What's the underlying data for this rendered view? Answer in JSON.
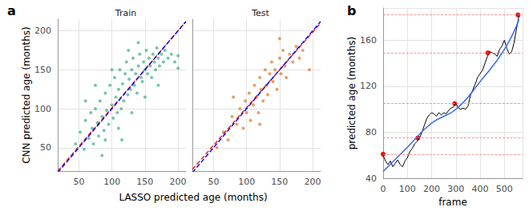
{
  "chart_data": [
    {
      "type": "scatter",
      "panel_label": "a",
      "x_label": "LASSO predicted age (months)",
      "y_label": "CNN predicted age (months)",
      "xlim": [
        18,
        212
      ],
      "xticks": [
        50,
        100,
        150,
        200
      ],
      "ylim": [
        20,
        215
      ],
      "yticks": [
        50,
        100,
        150,
        200
      ],
      "grid": true,
      "facets": [
        {
          "title": "Train",
          "series": [
            {
              "type": "scatter",
              "color": "#1b9e77",
              "marker": "circle",
              "x": [
                45,
                52,
                58,
                60,
                65,
                68,
                70,
                72,
                75,
                78,
                80,
                82,
                85,
                88,
                90,
                92,
                95,
                97,
                100,
                102,
                104,
                106,
                108,
                110,
                112,
                114,
                116,
                118,
                120,
                122,
                124,
                126,
                128,
                130,
                132,
                134,
                136,
                138,
                140,
                142,
                144,
                146,
                148,
                150,
                152,
                154,
                156,
                158,
                160,
                162,
                164,
                166,
                168,
                170,
                172,
                175,
                178,
                180,
                185,
                190,
                195,
                200,
                60,
                75,
                90,
                110,
                130,
                150,
                170,
                140,
                125,
                100,
                85,
                115,
                200
              ],
              "values": [
                55,
                70,
                48,
                85,
                62,
                95,
                75,
                55,
                100,
                82,
                65,
                110,
                90,
                72,
                120,
                98,
                80,
                130,
                105,
                88,
                140,
                115,
                95,
                125,
                150,
                100,
                132,
                110,
                145,
                160,
                118,
                138,
                125,
                150,
                165,
                130,
                145,
                120,
                155,
                170,
                140,
                135,
                160,
                150,
                175,
                145,
                165,
                155,
                140,
                170,
                160,
                150,
                178,
                165,
                155,
                170,
                160,
                175,
                165,
                170,
                160,
                168,
                110,
                130,
                60,
                75,
                95,
                115,
                130,
                185,
                175,
                150,
                40,
                60,
                152
              ]
            },
            {
              "type": "line",
              "color": "#e41a1c",
              "line_style": "dashed",
              "x": [
                18,
                212
              ],
              "values": [
                20,
                212
              ]
            },
            {
              "type": "line",
              "color": "#0000ff",
              "line_style": "dashed",
              "x": [
                18,
                212
              ],
              "values": [
                18,
                212
              ]
            }
          ]
        },
        {
          "title": "Test",
          "series": [
            {
              "type": "scatter",
              "color": "#d95f02",
              "marker": "circle",
              "x": [
                55,
                65,
                72,
                78,
                85,
                90,
                95,
                98,
                100,
                104,
                106,
                110,
                112,
                115,
                118,
                120,
                122,
                125,
                128,
                130,
                132,
                135,
                138,
                140,
                143,
                146,
                150,
                152,
                155,
                158,
                160,
                165,
                170,
                175,
                180,
                185,
                195,
                80,
                120,
                150
              ],
              "values": [
                50,
                70,
                60,
                90,
                80,
                100,
                75,
                110,
                95,
                120,
                85,
                105,
                130,
                115,
                95,
                140,
                125,
                110,
                150,
                130,
                118,
                145,
                160,
                135,
                150,
                125,
                165,
                145,
                175,
                155,
                140,
                170,
                160,
                180,
                165,
                175,
                150,
                115,
                80,
                190
              ]
            },
            {
              "type": "line",
              "color": "#e41a1c",
              "line_style": "dashed",
              "x": [
                18,
                212
              ],
              "values": [
                22,
                210
              ]
            },
            {
              "type": "line",
              "color": "#0000ff",
              "line_style": "dashed",
              "x": [
                18,
                212
              ],
              "values": [
                18,
                212
              ]
            }
          ]
        }
      ]
    },
    {
      "type": "line",
      "panel_label": "b",
      "x_label": "frame",
      "y_label": "predicted age (months)",
      "xlim": [
        0,
        575
      ],
      "xticks": [
        0,
        100,
        200,
        300,
        400,
        500
      ],
      "ylim": [
        40,
        188
      ],
      "yticks": [
        40,
        80,
        120,
        160
      ],
      "grid": true,
      "series": [
        {
          "type": "hline",
          "color": "#f08080",
          "line_style": "dashed",
          "values": [
            61,
            75,
            105,
            149,
            182
          ]
        },
        {
          "type": "line",
          "color": "#000000",
          "x": [
            0,
            10,
            20,
            30,
            40,
            50,
            60,
            70,
            80,
            90,
            100,
            110,
            120,
            130,
            140,
            150,
            160,
            170,
            180,
            190,
            200,
            210,
            220,
            230,
            240,
            250,
            260,
            270,
            280,
            290,
            300,
            310,
            320,
            330,
            340,
            350,
            360,
            370,
            380,
            390,
            400,
            410,
            420,
            430,
            440,
            450,
            460,
            470,
            480,
            490,
            500,
            510,
            520,
            530,
            540,
            550,
            560
          ],
          "values": [
            60,
            55,
            52,
            55,
            50,
            53,
            56,
            52,
            50,
            55,
            58,
            63,
            66,
            70,
            72,
            75,
            80,
            86,
            92,
            95,
            97,
            96,
            94,
            97,
            95,
            97,
            96,
            99,
            101,
            102,
            105,
            101,
            100,
            101,
            100,
            103,
            112,
            117,
            122,
            128,
            131,
            134,
            140,
            146,
            150,
            149,
            148,
            146,
            152,
            155,
            160,
            153,
            148,
            150,
            158,
            170,
            181
          ]
        },
        {
          "type": "smooth",
          "color": "#3366ff",
          "x": [
            0,
            100,
            200,
            300,
            400,
            500,
            560
          ],
          "values": [
            46,
            67,
            88,
            100,
            124,
            152,
            178
          ]
        },
        {
          "type": "scatter",
          "color": "#ff0000",
          "marker": "circle",
          "x": [
            0,
            143,
            295,
            432,
            556
          ],
          "values": [
            61,
            75,
            105,
            149,
            182
          ]
        }
      ]
    }
  ]
}
